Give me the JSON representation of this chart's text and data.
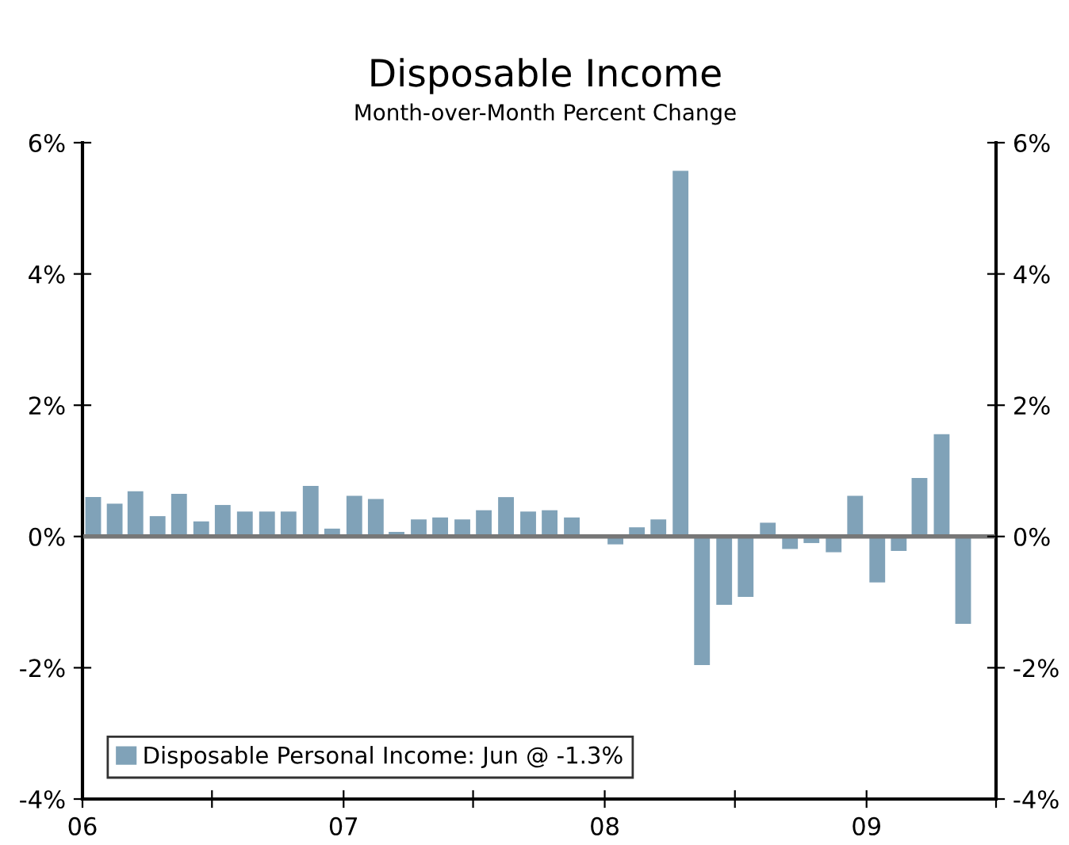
{
  "chart_data": {
    "type": "bar",
    "title": "Disposable Income",
    "subtitle": "Month-over-Month Percent Change",
    "x": [
      "2006-01-16",
      "2006-02-15",
      "2006-03-16",
      "2006-04-16",
      "2006-05-16",
      "2006-06-16",
      "2006-07-16",
      "2006-08-16",
      "2006-09-16",
      "2006-10-16",
      "2006-11-16",
      "2006-12-16",
      "2007-01-16",
      "2007-02-15",
      "2007-03-16",
      "2007-04-16",
      "2007-05-16",
      "2007-06-16",
      "2007-07-16",
      "2007-08-16",
      "2007-09-16",
      "2007-10-16",
      "2007-11-16",
      "2007-12-16",
      "2008-01-16",
      "2008-02-15",
      "2008-03-16",
      "2008-04-16",
      "2008-05-16",
      "2008-06-16",
      "2008-07-16",
      "2008-08-16",
      "2008-09-16",
      "2008-10-16",
      "2008-11-16",
      "2008-12-16",
      "2009-01-16",
      "2009-02-15",
      "2009-03-16",
      "2009-04-16",
      "2009-05-16"
    ],
    "series": [
      {
        "name": "Disposable Personal Income: Jun @ -1.3%",
        "color": "#80a2b8",
        "values": [
          0.6,
          0.5,
          0.69,
          0.31,
          0.65,
          0.23,
          0.48,
          0.38,
          0.38,
          0.38,
          0.77,
          0.12,
          0.62,
          0.57,
          0.07,
          0.26,
          0.29,
          0.26,
          0.4,
          0.6,
          0.38,
          0.4,
          0.29,
          0,
          -0.12,
          0.14,
          0.26,
          5.57,
          -1.96,
          -1.04,
          -0.92,
          0.21,
          -0.19,
          -0.1,
          -0.24,
          0.62,
          -0.7,
          -0.22,
          0.89,
          1.56,
          -1.33
        ]
      }
    ],
    "xlim": [
      "2006-01",
      "2009-07"
    ],
    "xticks": [
      {
        "value": "2006-01",
        "label": "06"
      },
      {
        "value": "2006-07",
        "label": null
      },
      {
        "value": "2007-01",
        "label": "07"
      },
      {
        "value": "2007-07",
        "label": null
      },
      {
        "value": "2008-01",
        "label": "08"
      },
      {
        "value": "2008-07",
        "label": null
      },
      {
        "value": "2009-01",
        "label": "09"
      },
      {
        "value": "2009-07",
        "label": null
      }
    ],
    "ylim": [
      -4,
      6
    ],
    "yticks": [
      {
        "value": -4,
        "label": "-4%"
      },
      {
        "value": -2,
        "label": "-2%"
      },
      {
        "value": 0,
        "label": "0%"
      },
      {
        "value": 2,
        "label": "2%"
      },
      {
        "value": 4,
        "label": "4%"
      },
      {
        "value": 6,
        "label": "6%"
      }
    ],
    "y2lim": [
      -4,
      6
    ],
    "y2ticks": [
      {
        "value": -4,
        "label": "-4%"
      },
      {
        "value": -2,
        "label": "-2%"
      },
      {
        "value": 0,
        "label": "0%"
      },
      {
        "value": 2,
        "label": "2%"
      },
      {
        "value": 4,
        "label": "4%"
      },
      {
        "value": 6,
        "label": "6%"
      }
    ],
    "ref_lines": [
      {
        "axis": "y",
        "value": 0,
        "label": null,
        "color": "#777777"
      }
    ],
    "grid": false,
    "legend": "bottom left"
  }
}
